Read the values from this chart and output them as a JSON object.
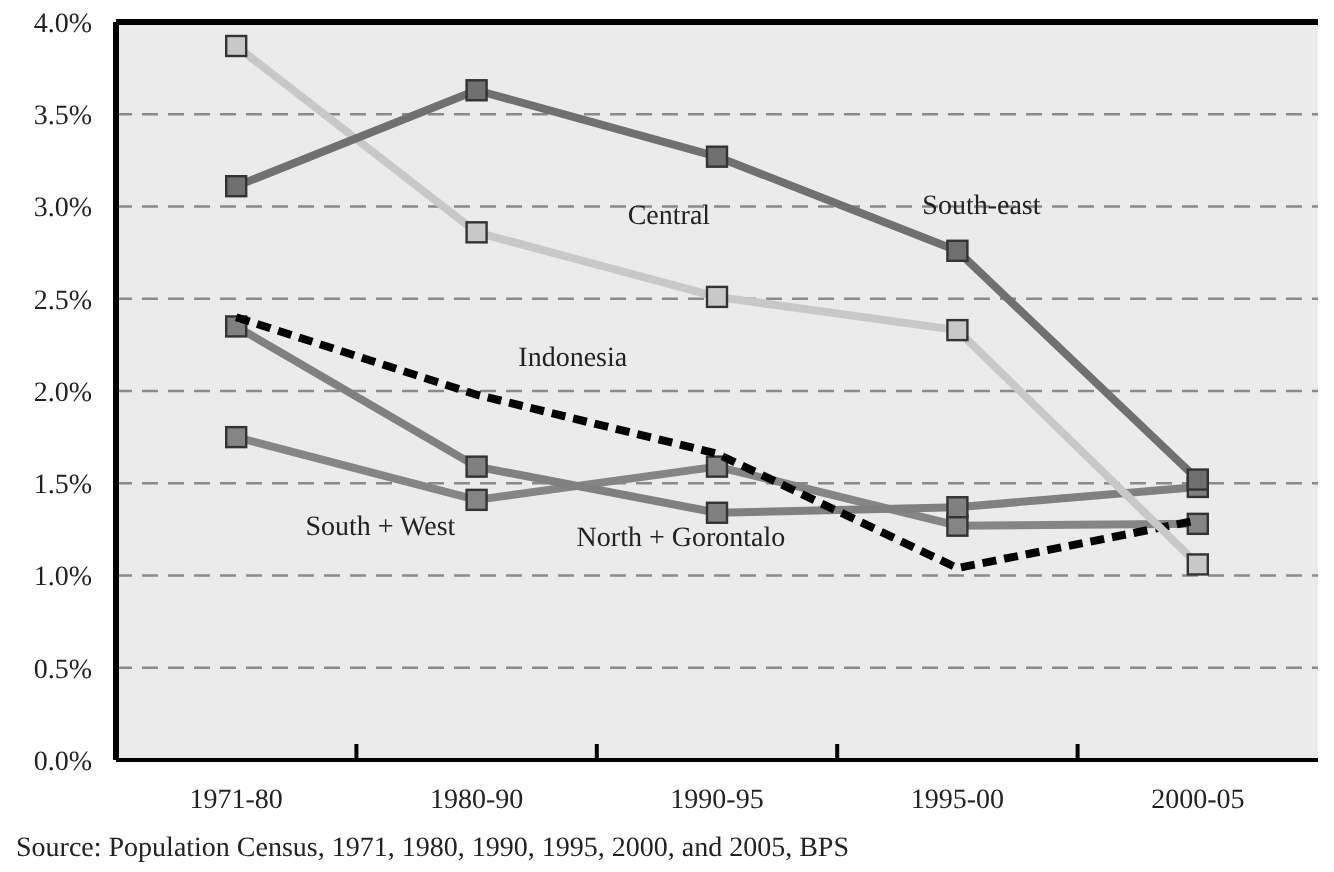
{
  "chart_data": {
    "type": "line",
    "categories": [
      "1971-80",
      "1980-90",
      "1990-95",
      "1995-00",
      "2000-05"
    ],
    "series": [
      {
        "name": "South-east",
        "color": "#707070",
        "values": [
          3.11,
          3.63,
          3.27,
          2.76,
          1.52
        ],
        "marker": "square",
        "line_style": "solid"
      },
      {
        "name": "Central",
        "color": "#c8c8c8",
        "values": [
          3.87,
          2.86,
          2.51,
          2.33,
          1.06
        ],
        "marker": "square",
        "line_style": "solid"
      },
      {
        "name": "Indonesia",
        "color": "#000000",
        "values": [
          2.4,
          1.98,
          1.66,
          1.04,
          1.3
        ],
        "marker": "none",
        "line_style": "dashed"
      },
      {
        "name": "North + Gorontalo",
        "color": "#808080",
        "values": [
          2.35,
          1.59,
          1.34,
          1.37,
          1.48
        ],
        "marker": "square",
        "line_style": "solid"
      },
      {
        "name": "South + West",
        "color": "#858585",
        "values": [
          1.75,
          1.41,
          1.59,
          1.27,
          1.28
        ],
        "marker": "square",
        "line_style": "solid"
      }
    ],
    "ylim": [
      0,
      4
    ],
    "yticks": [
      {
        "value": 0,
        "label": "0.0%"
      },
      {
        "value": 0.5,
        "label": "0.5%"
      },
      {
        "value": 1,
        "label": "1.0%"
      },
      {
        "value": 1.5,
        "label": "1.5%"
      },
      {
        "value": 2,
        "label": "2.0%"
      },
      {
        "value": 2.5,
        "label": "2.5%"
      },
      {
        "value": 3,
        "label": "3.0%"
      },
      {
        "value": 3.5,
        "label": "3.5%"
      },
      {
        "value": 4,
        "label": "4.0%"
      }
    ],
    "grid": "y",
    "annotations": [
      "Source: Population Census, 1971, 1980, 1990, 1995, 2000, and 2005, BPS"
    ]
  }
}
